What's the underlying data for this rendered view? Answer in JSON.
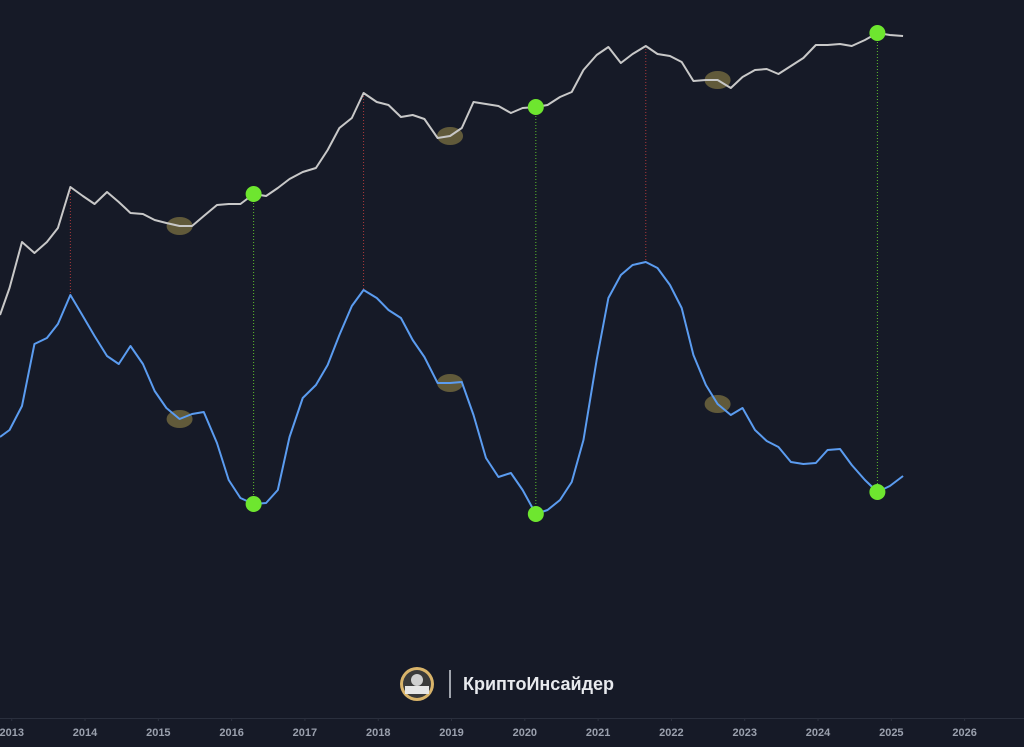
{
  "chart_data": {
    "type": "line",
    "watermark": "КриптоИнсайдер",
    "xlim": [
      2012.84,
      2026.81
    ],
    "xticks": [
      2013,
      2014,
      2015,
      2016,
      2017,
      2018,
      2019,
      2020,
      2021,
      2022,
      2023,
      2024,
      2025,
      2026
    ],
    "ylim": [
      0,
      720
    ],
    "x": [
      2012.84,
      2012.97,
      2013.14,
      2013.31,
      2013.48,
      2013.63,
      2013.8,
      2013.97,
      2014.13,
      2014.3,
      2014.46,
      2014.62,
      2014.79,
      2014.95,
      2015.11,
      2015.29,
      2015.46,
      2015.62,
      2015.8,
      2015.96,
      2016.12,
      2016.3,
      2016.47,
      2016.63,
      2016.79,
      2016.97,
      2017.15,
      2017.31,
      2017.47,
      2017.64,
      2017.8,
      2017.98,
      2018.14,
      2018.31,
      2018.47,
      2018.63,
      2018.81,
      2018.98,
      2019.14,
      2019.3,
      2019.47,
      2019.64,
      2019.81,
      2019.97,
      2020.15,
      2020.31,
      2020.48,
      2020.64,
      2020.8,
      2020.98,
      2021.14,
      2021.31,
      2021.47,
      2021.65,
      2021.81,
      2021.98,
      2022.14,
      2022.3,
      2022.47,
      2022.63,
      2022.81,
      2022.97,
      2023.14,
      2023.3,
      2023.46,
      2023.63,
      2023.8,
      2023.97,
      2024.13,
      2024.3,
      2024.46,
      2024.64,
      2024.81,
      2024.98,
      2025.16
    ],
    "series": [
      {
        "color": "#c8c8c8",
        "values": [
          405,
          432,
          478,
          467,
          478,
          492,
          533,
          524,
          516,
          528,
          518,
          507,
          506,
          500,
          497,
          494,
          494,
          504,
          515,
          516,
          516,
          526,
          524,
          532,
          541,
          548,
          552,
          570,
          592,
          602,
          627,
          618,
          615,
          603,
          605,
          601,
          582,
          584,
          592,
          618,
          616,
          614,
          607,
          612,
          613,
          615,
          623,
          628,
          650,
          665,
          673,
          657,
          666,
          674,
          666,
          664,
          658,
          639,
          640,
          640,
          632,
          643,
          650,
          651,
          646,
          654,
          662,
          675,
          675,
          676,
          674,
          680,
          687,
          685,
          684
        ]
      },
      {
        "color": "#5b9cf0",
        "values": [
          283,
          290,
          314,
          376,
          382,
          396,
          425,
          404,
          384,
          364,
          356,
          374,
          356,
          329,
          312,
          301,
          306,
          308,
          277,
          240,
          222,
          216,
          217,
          230,
          283,
          322,
          335,
          355,
          385,
          414,
          430,
          422,
          410,
          402,
          380,
          363,
          337,
          337,
          338,
          305,
          262,
          243,
          247,
          230,
          206,
          210,
          220,
          238,
          280,
          360,
          422,
          445,
          455,
          458,
          452,
          435,
          412,
          365,
          335,
          316,
          305,
          312,
          290,
          279,
          273,
          258,
          256,
          257,
          270,
          271,
          255,
          240,
          228,
          234,
          244
        ]
      }
    ],
    "bottoms_x": [
      2016.3,
      2020.15,
      2024.81
    ],
    "bottoms_color": "#6ee62f",
    "peaks_x": [
      2013.8,
      2017.8,
      2021.65
    ],
    "peaks_color": "#d04040",
    "highlights_x": [
      2015.29,
      2018.98,
      2022.63
    ],
    "highlights_color": "#8a7d45"
  }
}
